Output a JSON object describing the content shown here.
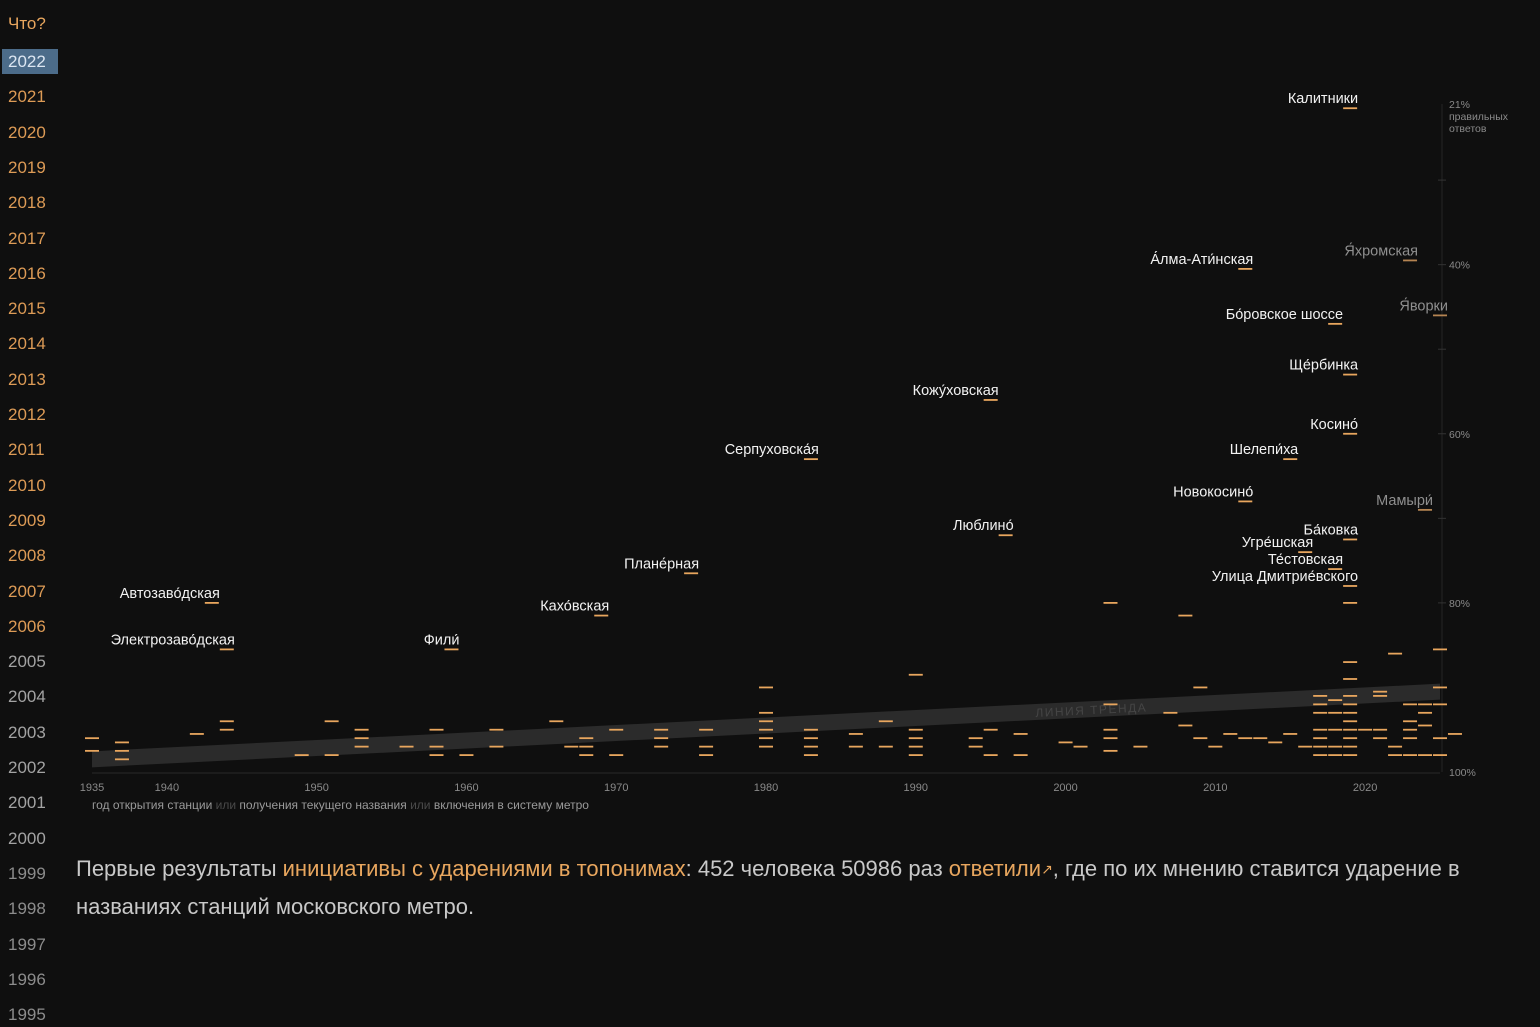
{
  "nav": {
    "heading": "Что?",
    "years": [
      "2022",
      "2021",
      "2020",
      "2019",
      "2018",
      "2017",
      "2016",
      "2015",
      "2014",
      "2013",
      "2012",
      "2011",
      "2010",
      "2009",
      "2008",
      "2007",
      "2006",
      "2005",
      "2004",
      "2003",
      "2002",
      "2001",
      "2000",
      "1999",
      "1998",
      "1997",
      "1996",
      "1995"
    ],
    "active": "2022"
  },
  "colors": {
    "background": "#0f0f0f",
    "accent": "#e8a65e",
    "year_recent": "#dd9b56",
    "year_faded": "#8c8c8c",
    "active_year_bg": "#4c6c8a",
    "label_primary": "#f2f2f2",
    "label_secondary": "#8f8f8f",
    "axis_text": "#8a8a8a",
    "trend_band": "#2b2b2b",
    "trend_text": "#454545",
    "caption_text": "#c9c9c9"
  },
  "chart_data": {
    "type": "scatter",
    "xlabel_parts": [
      "год открытия станции",
      " или ",
      "получения текущего названия",
      " или ",
      "включения в систему метро"
    ],
    "x_ticks": [
      "1935",
      "1940",
      "1950",
      "1960",
      "1970",
      "1980",
      "1990",
      "2000",
      "2010",
      "2020"
    ],
    "xlim": [
      1935,
      2025
    ],
    "y_ticks": [
      "21%",
      "40%",
      "60%",
      "80%",
      "100%"
    ],
    "y_top_label_lines": [
      "21%",
      "правильных",
      "ответов"
    ],
    "ylim": [
      21,
      100
    ],
    "trend_label": "ЛИНИЯ ТРЕНДА",
    "trend": {
      "x": [
        1935,
        2025
      ],
      "y": [
        98.5,
        90.5
      ]
    },
    "labeled_points": [
      {
        "name": "Калитники",
        "x": 2019,
        "y": 21.5,
        "muted": false
      },
      {
        "name": "Я́хромская",
        "x": 2023,
        "y": 39.5,
        "muted": true
      },
      {
        "name": "А́лма-Ати́нская",
        "x": 2012,
        "y": 40.5,
        "muted": false
      },
      {
        "name": "Я́ворки",
        "x": 2025,
        "y": 46,
        "muted": true
      },
      {
        "name": "Бо́ровское шоссе",
        "x": 2018,
        "y": 47,
        "muted": false
      },
      {
        "name": "Ще́рбинка",
        "x": 2019,
        "y": 53,
        "muted": false
      },
      {
        "name": "Кожу́ховская",
        "x": 1995,
        "y": 56,
        "muted": false
      },
      {
        "name": "Косино́",
        "x": 2019,
        "y": 60,
        "muted": false
      },
      {
        "name": "Шелепи́ха",
        "x": 2015,
        "y": 63,
        "muted": false
      },
      {
        "name": "Серпуховска́я",
        "x": 1983,
        "y": 63,
        "muted": false
      },
      {
        "name": "Новокосино́",
        "x": 2012,
        "y": 68,
        "muted": false
      },
      {
        "name": "Мамыри́",
        "x": 2024,
        "y": 69,
        "muted": true
      },
      {
        "name": "Люблино́",
        "x": 1996,
        "y": 72,
        "muted": false
      },
      {
        "name": "Ба́ковка",
        "x": 2019,
        "y": 72.5,
        "muted": false
      },
      {
        "name": "Угре́шская",
        "x": 2016,
        "y": 74,
        "muted": false
      },
      {
        "name": "Те́стовская",
        "x": 2018,
        "y": 76,
        "muted": false
      },
      {
        "name": "Плане́рная",
        "x": 1975,
        "y": 76.5,
        "muted": false
      },
      {
        "name": "Улица Дмитрие́вского",
        "x": 2019,
        "y": 78,
        "muted": false
      },
      {
        "name": "Автозаво́дская",
        "x": 1943,
        "y": 80,
        "muted": false
      },
      {
        "name": "Кахо́вская",
        "x": 1969,
        "y": 81.5,
        "muted": false
      },
      {
        "name": "Электрозаво́дская",
        "x": 1944,
        "y": 85.5,
        "muted": false
      },
      {
        "name": "Фили́",
        "x": 1959,
        "y": 85.5,
        "muted": false
      }
    ],
    "unlabeled_points": [
      [
        2003,
        80
      ],
      [
        2008,
        81.5
      ],
      [
        2019,
        80
      ],
      [
        2022,
        86
      ],
      [
        2025,
        85.5
      ],
      [
        1990,
        88.5
      ],
      [
        2019,
        87
      ],
      [
        2019,
        89
      ],
      [
        1980,
        90
      ],
      [
        2009,
        90
      ],
      [
        2025,
        90
      ],
      [
        1935,
        96
      ],
      [
        1935,
        97.5
      ],
      [
        1937,
        96.5
      ],
      [
        1937,
        97.5
      ],
      [
        1937,
        98.5
      ],
      [
        1944,
        94
      ],
      [
        1944,
        95
      ],
      [
        1942,
        95.5
      ],
      [
        1951,
        94
      ],
      [
        1953,
        95
      ],
      [
        1953,
        96
      ],
      [
        1953,
        97
      ],
      [
        1949,
        98
      ],
      [
        1951,
        98
      ],
      [
        1958,
        95
      ],
      [
        1958,
        97
      ],
      [
        1958,
        98
      ],
      [
        1956,
        97
      ],
      [
        1960,
        98
      ],
      [
        1962,
        95
      ],
      [
        1962,
        97
      ],
      [
        1966,
        94
      ],
      [
        1967,
        97
      ],
      [
        1968,
        96
      ],
      [
        1968,
        97
      ],
      [
        1968,
        98
      ],
      [
        1970,
        95
      ],
      [
        1970,
        98
      ],
      [
        1973,
        95
      ],
      [
        1973,
        96
      ],
      [
        1973,
        97
      ],
      [
        1976,
        95
      ],
      [
        1976,
        97
      ],
      [
        1976,
        98
      ],
      [
        1980,
        93
      ],
      [
        1980,
        94
      ],
      [
        1980,
        95
      ],
      [
        1980,
        96
      ],
      [
        1980,
        97
      ],
      [
        1983,
        95
      ],
      [
        1983,
        96
      ],
      [
        1983,
        97
      ],
      [
        1983,
        98
      ],
      [
        1986,
        95.5
      ],
      [
        1986,
        97
      ],
      [
        1988,
        94
      ],
      [
        1988,
        97
      ],
      [
        1990,
        95
      ],
      [
        1990,
        96
      ],
      [
        1990,
        97
      ],
      [
        1990,
        98
      ],
      [
        1994,
        96
      ],
      [
        1994,
        97
      ],
      [
        1995,
        95
      ],
      [
        1995,
        98
      ],
      [
        1997,
        95.5
      ],
      [
        1997,
        98
      ],
      [
        2000,
        96.5
      ],
      [
        2001,
        97
      ],
      [
        2003,
        92
      ],
      [
        2003,
        95
      ],
      [
        2003,
        96
      ],
      [
        2003,
        97.5
      ],
      [
        2005,
        97
      ],
      [
        2007,
        93
      ],
      [
        2008,
        94.5
      ],
      [
        2009,
        96
      ],
      [
        2010,
        97
      ],
      [
        2011,
        95.5
      ],
      [
        2012,
        96
      ],
      [
        2013,
        96
      ],
      [
        2014,
        96.5
      ],
      [
        2015,
        95.5
      ],
      [
        2016,
        97
      ],
      [
        2017,
        91
      ],
      [
        2017,
        92
      ],
      [
        2017,
        93
      ],
      [
        2017,
        95
      ],
      [
        2017,
        96
      ],
      [
        2017,
        97
      ],
      [
        2017,
        98
      ],
      [
        2018,
        91.5
      ],
      [
        2018,
        93
      ],
      [
        2018,
        95
      ],
      [
        2018,
        97
      ],
      [
        2018,
        98
      ],
      [
        2019,
        91
      ],
      [
        2019,
        92
      ],
      [
        2019,
        93
      ],
      [
        2019,
        94
      ],
      [
        2019,
        95
      ],
      [
        2019,
        96
      ],
      [
        2019,
        97
      ],
      [
        2019,
        98
      ],
      [
        2020,
        95
      ],
      [
        2021,
        90.5
      ],
      [
        2021,
        91
      ],
      [
        2021,
        95
      ],
      [
        2021,
        96
      ],
      [
        2022,
        97
      ],
      [
        2022,
        98
      ],
      [
        2023,
        92
      ],
      [
        2023,
        94
      ],
      [
        2023,
        95
      ],
      [
        2023,
        96
      ],
      [
        2023,
        98
      ],
      [
        2024,
        92
      ],
      [
        2024,
        93
      ],
      [
        2024,
        94.5
      ],
      [
        2024,
        98
      ],
      [
        2025,
        92
      ],
      [
        2025,
        96
      ],
      [
        2025,
        98
      ],
      [
        2026,
        95.5
      ]
    ]
  },
  "caption": {
    "part1": "Первые результаты ",
    "link1": "инициативы с ударениями в топонимах",
    "part2": ": 452 человека 50986 раз ",
    "link2": "ответили",
    "arrow": "↗",
    "part3": ", где по их мнению ставится ударение в названиях станций московского метро."
  }
}
